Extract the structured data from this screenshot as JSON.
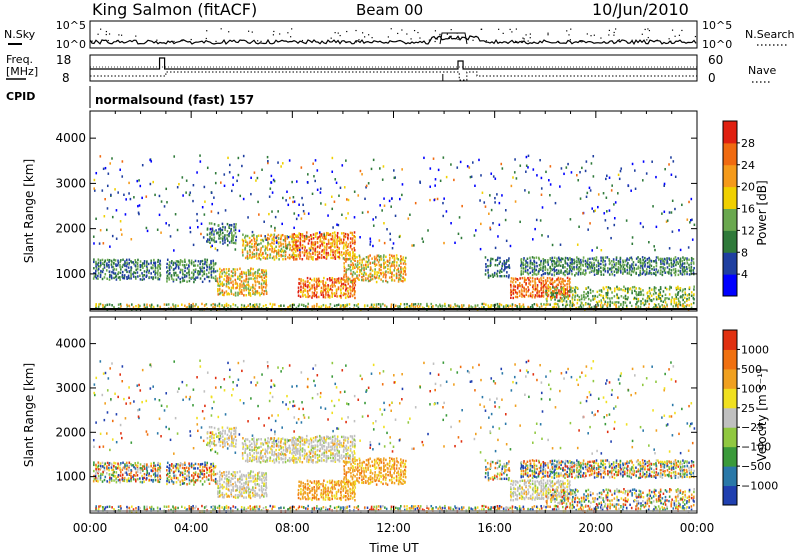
{
  "header": {
    "station": "King Salmon (fitACF)",
    "beam": "Beam 00",
    "date": "10/Jun/2010"
  },
  "params": {
    "nsky_label": "N.Sky",
    "nsky_ticks": [
      "10^5",
      "10^0"
    ],
    "nsearch_label": "N.Search",
    "freq_label_1": "Freq.",
    "freq_label_2": "[MHz]",
    "freq_ticks": [
      "18",
      "8"
    ],
    "nave_label": "Nave",
    "nave_ticks": [
      "60",
      "0"
    ],
    "cpid_label": "CPID",
    "cpid_text": "normalsound (fast) 157"
  },
  "colors": {
    "power_scale": [
      "#0000ff",
      "#1f3fa0",
      "#2f7a3a",
      "#6aa84f",
      "#f0d000",
      "#f59a1a",
      "#f06a10",
      "#e02010"
    ],
    "velocity_scale": [
      "#2040b0",
      "#2a78a8",
      "#3a9a3a",
      "#90c840",
      "#c0c0c0",
      "#f0e020",
      "#f0a020",
      "#f07010",
      "#e03010"
    ]
  },
  "chart_data": [
    {
      "type": "heatmap",
      "name": "power",
      "ylabel": "Slant Range [km]",
      "xlabel": "Time UT",
      "x_ticks": [
        "00:00",
        "04:00",
        "08:00",
        "12:00",
        "16:00",
        "20:00",
        "00:00"
      ],
      "xlim_hours": [
        0,
        24
      ],
      "y_ticks": [
        1000,
        2000,
        3000,
        4000
      ],
      "ylim": [
        180,
        4600
      ],
      "colorbar_label": "Power [dB]",
      "colorbar_ticks": [
        "28",
        "24",
        "20",
        "16",
        "12",
        "8",
        "4"
      ],
      "colorbar_range": [
        0,
        32
      ],
      "grid": false
    },
    {
      "type": "heatmap",
      "name": "velocity",
      "ylabel": "Slant Range [km]",
      "xlabel": "Time UT",
      "x_ticks": [
        "00:00",
        "04:00",
        "08:00",
        "12:00",
        "16:00",
        "20:00",
        "00:00"
      ],
      "xlim_hours": [
        0,
        24
      ],
      "y_ticks": [
        1000,
        2000,
        3000,
        4000
      ],
      "ylim": [
        180,
        4600
      ],
      "colorbar_label": "Velocity [m s⁻¹]",
      "colorbar_ticks": [
        "1000",
        "500",
        "100",
        "25",
        "−25",
        "−100",
        "−500",
        "−1000"
      ],
      "grid": false
    }
  ]
}
